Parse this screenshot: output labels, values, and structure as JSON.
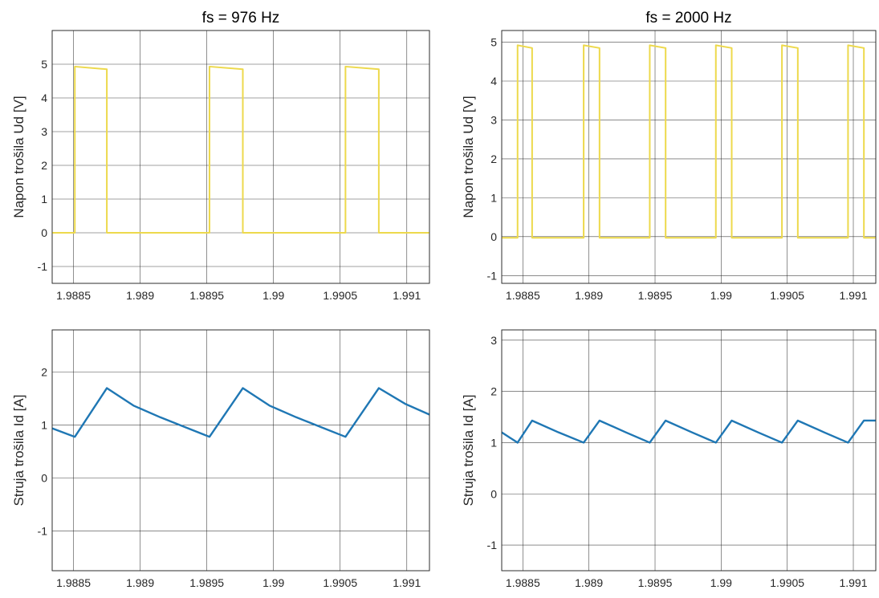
{
  "chart_data": [
    {
      "type": "line",
      "title": "fs = 976 Hz",
      "xlabel": "",
      "ylabel": "Napon trošila Ud [V]",
      "xlim": [
        1.98834,
        1.99117
      ],
      "ylim": [
        -1.5,
        6
      ],
      "xticks": [
        1.9885,
        1.989,
        1.9895,
        1.99,
        1.9905,
        1.991
      ],
      "xtick_labels": [
        "1.9885",
        "1.989",
        "1.9895",
        "1.99",
        "1.9905",
        "1.991"
      ],
      "yticks": [
        -1,
        0,
        1,
        2,
        3,
        4,
        5
      ],
      "ytick_labels": [
        "-1",
        "0",
        "1",
        "2",
        "3",
        "4",
        "5"
      ],
      "grid": true,
      "series": [
        {
          "color": "#EDD94C",
          "x": [
            1.98834,
            1.98851,
            1.98851,
            1.98875,
            1.98875,
            1.98952,
            1.98952,
            1.98977,
            1.98977,
            1.99054,
            1.99054,
            1.99079,
            1.99079,
            1.99117
          ],
          "y": [
            0,
            0,
            4.93,
            4.85,
            0,
            0,
            4.93,
            4.85,
            0,
            0,
            4.93,
            4.85,
            0,
            0
          ]
        }
      ]
    },
    {
      "type": "line",
      "title": "fs = 2000 Hz",
      "xlabel": "",
      "ylabel": "Napon trošila Ud [V]",
      "xlim": [
        1.98834,
        1.99117
      ],
      "ylim": [
        -1.2,
        5.3
      ],
      "xticks": [
        1.9885,
        1.989,
        1.9895,
        1.99,
        1.9905,
        1.991
      ],
      "xtick_labels": [
        "1.9885",
        "1.989",
        "1.9895",
        "1.99",
        "1.9905",
        "1.991"
      ],
      "yticks": [
        -1,
        0,
        1,
        2,
        3,
        4,
        5
      ],
      "ytick_labels": [
        "-1",
        "0",
        "1",
        "2",
        "3",
        "4",
        "5"
      ],
      "grid": true,
      "series": [
        {
          "color": "#EDD94C",
          "x": [
            1.98834,
            1.98846,
            1.98846,
            1.98857,
            1.98857,
            1.98896,
            1.98896,
            1.98908,
            1.98908,
            1.98946,
            1.98946,
            1.98958,
            1.98958,
            1.98996,
            1.98996,
            1.99008,
            1.99008,
            1.99046,
            1.99046,
            1.99058,
            1.99058,
            1.99096,
            1.99096,
            1.99108,
            1.99108,
            1.99117
          ],
          "y": [
            -0.03,
            -0.03,
            4.92,
            4.85,
            -0.03,
            -0.03,
            4.92,
            4.85,
            -0.03,
            -0.03,
            4.92,
            4.85,
            -0.03,
            -0.03,
            4.92,
            4.85,
            -0.03,
            -0.03,
            4.92,
            4.85,
            -0.03,
            -0.03,
            4.92,
            4.85,
            -0.03,
            -0.03
          ]
        }
      ]
    },
    {
      "type": "line",
      "title": "",
      "xlabel": "",
      "ylabel": "Struja trošila Id [A]",
      "xlim": [
        1.98834,
        1.99117
      ],
      "ylim": [
        -1.75,
        2.8
      ],
      "xticks": [
        1.9885,
        1.989,
        1.9895,
        1.99,
        1.9905,
        1.991
      ],
      "xtick_labels": [
        "1.9885",
        "1.989",
        "1.9895",
        "1.99",
        "1.9905",
        "1.991"
      ],
      "yticks": [
        -1,
        0,
        1,
        2
      ],
      "ytick_labels": [
        "-1",
        "0",
        "1",
        "2"
      ],
      "grid": true,
      "series": [
        {
          "color": "#1F77B4",
          "x": [
            1.98834,
            1.98851,
            1.98875,
            1.98895,
            1.98915,
            1.98935,
            1.98952,
            1.98977,
            1.98997,
            1.99017,
            1.99037,
            1.99054,
            1.99079,
            1.99099,
            1.99117
          ],
          "y": [
            0.94,
            0.78,
            1.7,
            1.37,
            1.15,
            0.95,
            0.78,
            1.7,
            1.37,
            1.15,
            0.95,
            0.78,
            1.7,
            1.4,
            1.2
          ]
        }
      ]
    },
    {
      "type": "line",
      "title": "",
      "xlabel": "",
      "ylabel": "Struja trošila Id [A]",
      "xlim": [
        1.98834,
        1.99117
      ],
      "ylim": [
        -1.5,
        3.2
      ],
      "xticks": [
        1.9885,
        1.989,
        1.9895,
        1.99,
        1.9905,
        1.991
      ],
      "xtick_labels": [
        "1.9885",
        "1.989",
        "1.9895",
        "1.99",
        "1.9905",
        "1.991"
      ],
      "yticks": [
        -1,
        0,
        1,
        2,
        3
      ],
      "ytick_labels": [
        "-1",
        "0",
        "1",
        "2",
        "3"
      ],
      "grid": true,
      "series": [
        {
          "color": "#1F77B4",
          "x": [
            1.98834,
            1.98846,
            1.98857,
            1.98877,
            1.98896,
            1.98908,
            1.98928,
            1.98946,
            1.98958,
            1.98978,
            1.98996,
            1.99008,
            1.99028,
            1.99046,
            1.99058,
            1.99078,
            1.99096,
            1.99108,
            1.99117
          ],
          "y": [
            1.2,
            1.0,
            1.43,
            1.2,
            1.0,
            1.43,
            1.2,
            1.0,
            1.43,
            1.2,
            1.0,
            1.43,
            1.2,
            1.0,
            1.43,
            1.2,
            1.0,
            1.43,
            1.43
          ]
        }
      ]
    }
  ]
}
